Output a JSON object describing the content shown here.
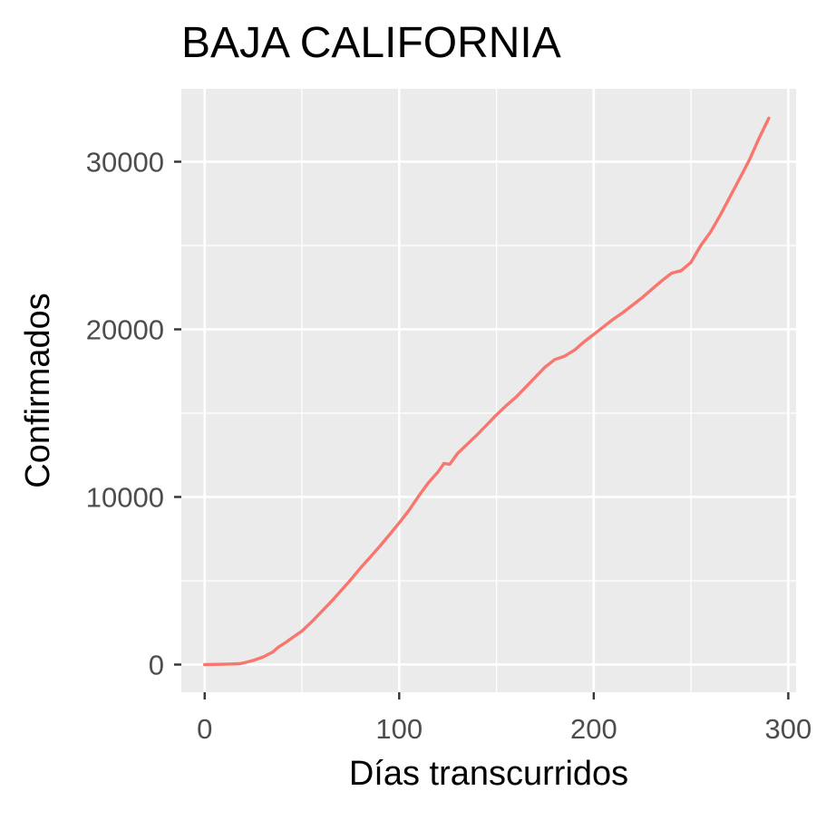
{
  "chart_data": {
    "type": "line",
    "title": "BAJA CALIFORNIA",
    "xlabel": "Días transcurridos",
    "ylabel": "Confirmados",
    "xlim": [
      -12,
      304
    ],
    "ylim": [
      -1650,
      34350
    ],
    "x_ticks": [
      0,
      100,
      200,
      300
    ],
    "x_tick_labels": [
      "0",
      "100",
      "200",
      "300"
    ],
    "x_minor_ticks": [
      50,
      150,
      250
    ],
    "y_ticks": [
      0,
      10000,
      20000,
      30000
    ],
    "y_tick_labels": [
      "0",
      "10000",
      "20000",
      "30000"
    ],
    "y_minor_ticks": [
      5000,
      15000,
      25000
    ],
    "grid": true,
    "legend": "none",
    "series": [
      {
        "color": "#F8766D",
        "x": [
          0,
          10,
          18,
          20,
          25,
          30,
          35,
          38,
          42,
          45,
          50,
          55,
          60,
          65,
          70,
          75,
          80,
          85,
          90,
          95,
          100,
          105,
          110,
          115,
          120,
          123,
          126,
          130,
          135,
          140,
          145,
          150,
          155,
          160,
          165,
          170,
          175,
          180,
          185,
          190,
          195,
          200,
          205,
          210,
          215,
          220,
          225,
          230,
          235,
          240,
          245,
          250,
          255,
          260,
          265,
          270,
          275,
          280,
          285,
          290
        ],
        "y": [
          0,
          20,
          50,
          100,
          250,
          450,
          750,
          1050,
          1350,
          1600,
          2000,
          2550,
          3150,
          3750,
          4400,
          5050,
          5750,
          6400,
          7050,
          7750,
          8450,
          9200,
          10050,
          10850,
          11500,
          12000,
          11950,
          12600,
          13150,
          13700,
          14300,
          14900,
          15450,
          15950,
          16550,
          17150,
          17750,
          18200,
          18400,
          18750,
          19250,
          19700,
          20150,
          20600,
          21000,
          21450,
          21900,
          22400,
          22900,
          23350,
          23500,
          24000,
          25000,
          25800,
          26800,
          27900,
          29000,
          30100,
          31400,
          32600
        ]
      }
    ]
  }
}
